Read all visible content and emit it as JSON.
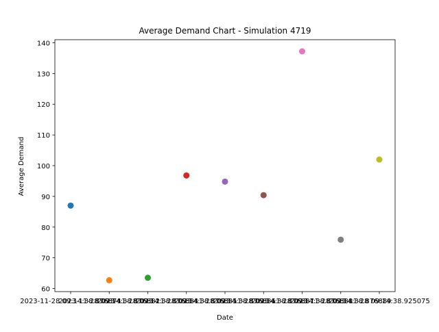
{
  "chart_data": {
    "type": "scatter",
    "title": "Average Demand Chart - Simulation 4719",
    "xlabel": "Date",
    "ylabel": "Average Demand",
    "ylim": [
      59,
      141
    ],
    "yticks": [
      60,
      70,
      80,
      90,
      100,
      110,
      120,
      130,
      140
    ],
    "grid": false,
    "legend": "none",
    "x_tick_labels": [
      "2023-11-28 09:14:38.876874",
      "2023-11-28 09:14:38.876882",
      "2023-11-28 09:14:38.876884",
      "2023-11-28 09:14:38.876885",
      "2023-11-28 09:14:38.876886",
      "2023-11-28 09:14:38.876887",
      "2023-11-28 09:14:38.876888",
      "2023-11-28 09:14:38.876889",
      "2023-11-28 09:14:38.925075"
    ],
    "points": [
      {
        "x_index": 0,
        "y": 87.0,
        "color": "#1f77b4"
      },
      {
        "x_index": 1,
        "y": 62.7,
        "color": "#ff7f0e"
      },
      {
        "x_index": 2,
        "y": 63.5,
        "color": "#2ca02c"
      },
      {
        "x_index": 3,
        "y": 96.8,
        "color": "#d62728"
      },
      {
        "x_index": 4,
        "y": 94.8,
        "color": "#9467bd"
      },
      {
        "x_index": 5,
        "y": 90.4,
        "color": "#8c564b"
      },
      {
        "x_index": 6,
        "y": 137.2,
        "color": "#e377c2"
      },
      {
        "x_index": 7,
        "y": 75.9,
        "color": "#7f7f7f"
      },
      {
        "x_index": 8,
        "y": 102.0,
        "color": "#bcbd22"
      }
    ]
  }
}
